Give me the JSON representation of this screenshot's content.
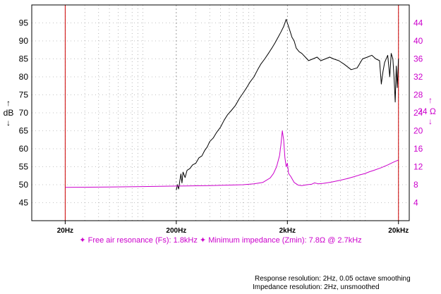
{
  "chart_data": {
    "type": "line",
    "x_scale": "log",
    "xlim": [
      20,
      20000
    ],
    "ylim_left": [
      40,
      100
    ],
    "ylim_right": [
      0,
      48
    ],
    "grid": true,
    "left_axis": {
      "label_top": "↑",
      "label": "dB",
      "label_bottom": "↓",
      "ticks": [
        45,
        50,
        55,
        60,
        65,
        70,
        75,
        80,
        85,
        90,
        95
      ]
    },
    "right_axis": {
      "label_top": "↑",
      "label": "24 Ω",
      "label_bottom": "↓",
      "ticks": [
        4,
        8,
        12,
        16,
        20,
        24,
        28,
        32,
        36,
        40,
        44
      ]
    },
    "x_ticks": [
      {
        "value": 20,
        "label": "20Hz"
      },
      {
        "value": 200,
        "label": "200Hz"
      },
      {
        "value": 2000,
        "label": "2kHz"
      },
      {
        "value": 20000,
        "label": "20kHz"
      }
    ],
    "markers": [
      20,
      20000
    ],
    "series": [
      {
        "axis": "left",
        "color": "#000000",
        "points": [
          [
            200,
            48.5
          ],
          [
            205,
            50
          ],
          [
            210,
            48.8
          ],
          [
            215,
            51
          ],
          [
            220,
            53
          ],
          [
            225,
            50.5
          ],
          [
            230,
            53.5
          ],
          [
            240,
            52
          ],
          [
            250,
            54
          ],
          [
            265,
            54.5
          ],
          [
            280,
            55.5
          ],
          [
            300,
            56
          ],
          [
            320,
            57.5
          ],
          [
            340,
            58
          ],
          [
            360,
            59.5
          ],
          [
            380,
            60.5
          ],
          [
            400,
            62
          ],
          [
            430,
            63
          ],
          [
            460,
            64.5
          ],
          [
            500,
            66
          ],
          [
            540,
            68
          ],
          [
            580,
            69.5
          ],
          [
            620,
            70.5
          ],
          [
            680,
            72
          ],
          [
            740,
            74
          ],
          [
            800,
            75.5
          ],
          [
            860,
            77
          ],
          [
            920,
            78.5
          ],
          [
            1000,
            80
          ],
          [
            1080,
            82
          ],
          [
            1150,
            83.5
          ],
          [
            1250,
            85
          ],
          [
            1350,
            86.5
          ],
          [
            1450,
            88
          ],
          [
            1550,
            89.5
          ],
          [
            1650,
            91
          ],
          [
            1750,
            92.5
          ],
          [
            1850,
            94
          ],
          [
            1950,
            96
          ],
          [
            2000,
            95
          ],
          [
            2100,
            93
          ],
          [
            2200,
            91
          ],
          [
            2300,
            90
          ],
          [
            2400,
            88
          ],
          [
            2550,
            87
          ],
          [
            2700,
            86.5
          ],
          [
            2900,
            85.5
          ],
          [
            3100,
            84.5
          ],
          [
            3400,
            85
          ],
          [
            3700,
            85.5
          ],
          [
            4000,
            84.5
          ],
          [
            4400,
            85
          ],
          [
            4800,
            85.5
          ],
          [
            5200,
            85
          ],
          [
            5800,
            84.5
          ],
          [
            6500,
            83.5
          ],
          [
            7500,
            82
          ],
          [
            8500,
            82.5
          ],
          [
            9500,
            85
          ],
          [
            10500,
            85.5
          ],
          [
            11500,
            86
          ],
          [
            12500,
            85
          ],
          [
            13500,
            84.5
          ],
          [
            14000,
            78
          ],
          [
            14500,
            81.5
          ],
          [
            15000,
            84
          ],
          [
            16000,
            86
          ],
          [
            16700,
            80
          ],
          [
            17200,
            86.5
          ],
          [
            17800,
            85
          ],
          [
            18300,
            79
          ],
          [
            18700,
            73
          ],
          [
            19100,
            83
          ],
          [
            19500,
            77
          ],
          [
            20000,
            85
          ]
        ]
      },
      {
        "axis": "right",
        "color": "#cc00cc",
        "points": [
          [
            20,
            7.4
          ],
          [
            50,
            7.5
          ],
          [
            100,
            7.6
          ],
          [
            200,
            7.7
          ],
          [
            400,
            7.8
          ],
          [
            800,
            8
          ],
          [
            1000,
            8.2
          ],
          [
            1200,
            8.5
          ],
          [
            1400,
            9.5
          ],
          [
            1500,
            10.5
          ],
          [
            1600,
            12
          ],
          [
            1700,
            14.5
          ],
          [
            1750,
            17
          ],
          [
            1800,
            20
          ],
          [
            1850,
            18
          ],
          [
            1900,
            14
          ],
          [
            1950,
            12
          ],
          [
            2000,
            12.8
          ],
          [
            2050,
            10.5
          ],
          [
            2150,
            9.8
          ],
          [
            2300,
            8.5
          ],
          [
            2500,
            7.9
          ],
          [
            2700,
            7.8
          ],
          [
            3000,
            8
          ],
          [
            3300,
            8.1
          ],
          [
            3500,
            8.4
          ],
          [
            3800,
            8.2
          ],
          [
            4200,
            8.3
          ],
          [
            5000,
            8.6
          ],
          [
            6000,
            9
          ],
          [
            7000,
            9.4
          ],
          [
            8000,
            9.8
          ],
          [
            9000,
            10.2
          ],
          [
            10000,
            10.5
          ],
          [
            11000,
            10.9
          ],
          [
            12000,
            11.2
          ],
          [
            14000,
            11.8
          ],
          [
            16000,
            12.4
          ],
          [
            18000,
            13
          ],
          [
            20000,
            13.5
          ]
        ]
      }
    ]
  },
  "legend_text": "✦ Free air resonance (Fs): 1.8kHz ✦ Minimum impedance (Zmin): 7.8Ω @ 2.7kHz",
  "notes": {
    "line1": "Response resolution: 2Hz, 0.05 octave smoothing",
    "line2": "Impedance resolution: 2Hz, unsmoothed"
  },
  "colors": {
    "response": "#000000",
    "impedance": "#cc00cc",
    "marker": "#cc0000",
    "grid": "#888888"
  }
}
